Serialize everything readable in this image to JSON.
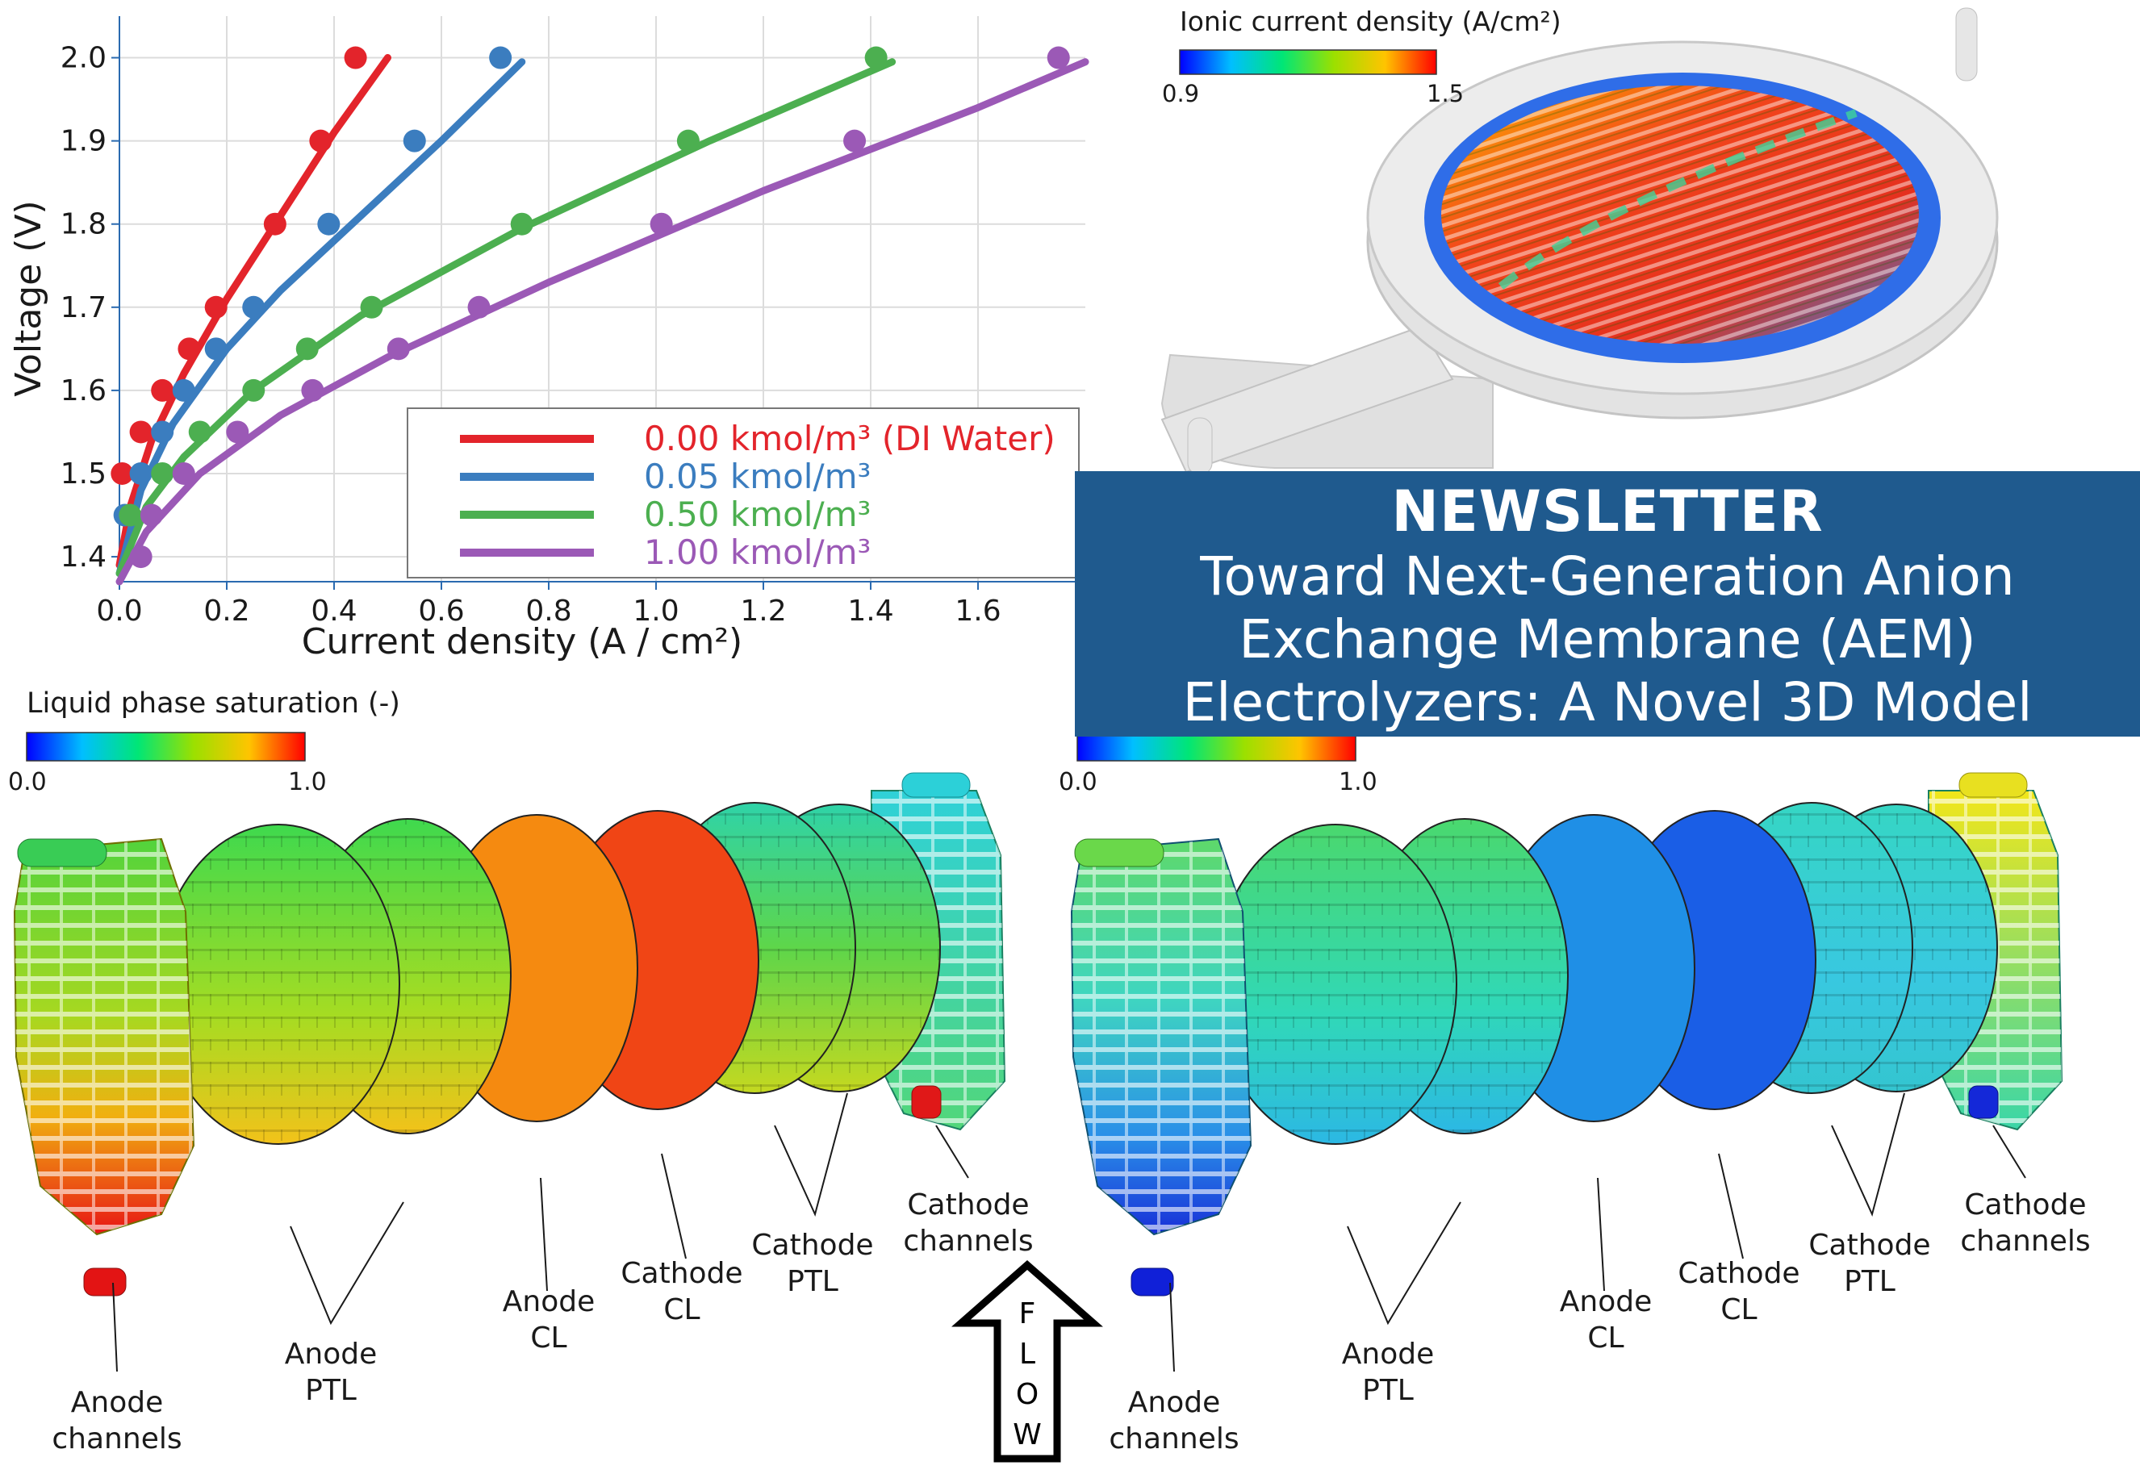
{
  "chart_data": {
    "type": "line",
    "xlabel": "Current density (A / cm²)",
    "ylabel": "Voltage (V)",
    "xlim": [
      0,
      1.8
    ],
    "ylim": [
      1.37,
      2.05
    ],
    "xticks": [
      "0.0",
      "0.2",
      "0.4",
      "0.6",
      "0.8",
      "1.0",
      "1.2",
      "1.4",
      "1.6"
    ],
    "yticks": [
      "1.4",
      "1.5",
      "1.6",
      "1.7",
      "1.8",
      "1.9",
      "2.0"
    ],
    "grid": true,
    "legend_position": "bottom-right",
    "series": [
      {
        "name": "0.00 kmol/m³ (DI Water)",
        "color": "#e3242b",
        "points": [
          [
            0.005,
            1.5
          ],
          [
            0.04,
            1.55
          ],
          [
            0.08,
            1.6
          ],
          [
            0.13,
            1.65
          ],
          [
            0.18,
            1.7
          ],
          [
            0.29,
            1.8
          ],
          [
            0.375,
            1.9
          ],
          [
            0.44,
            2.0
          ]
        ],
        "fit": [
          [
            0.0,
            1.39
          ],
          [
            0.02,
            1.46
          ],
          [
            0.06,
            1.54
          ],
          [
            0.12,
            1.62
          ],
          [
            0.2,
            1.71
          ],
          [
            0.3,
            1.81
          ],
          [
            0.4,
            1.91
          ],
          [
            0.5,
            2.0
          ]
        ]
      },
      {
        "name": "0.05 kmol/m³",
        "color": "#3b7dbf",
        "points": [
          [
            0.01,
            1.45
          ],
          [
            0.04,
            1.5
          ],
          [
            0.08,
            1.55
          ],
          [
            0.12,
            1.6
          ],
          [
            0.18,
            1.65
          ],
          [
            0.25,
            1.7
          ],
          [
            0.39,
            1.8
          ],
          [
            0.55,
            1.9
          ],
          [
            0.71,
            2.0
          ]
        ],
        "fit": [
          [
            0.0,
            1.38
          ],
          [
            0.04,
            1.48
          ],
          [
            0.1,
            1.56
          ],
          [
            0.2,
            1.65
          ],
          [
            0.3,
            1.72
          ],
          [
            0.45,
            1.81
          ],
          [
            0.6,
            1.9
          ],
          [
            0.75,
            1.995
          ]
        ]
      },
      {
        "name": "0.50 kmol/m³",
        "color": "#4caf50",
        "points": [
          [
            0.02,
            1.45
          ],
          [
            0.08,
            1.5
          ],
          [
            0.15,
            1.55
          ],
          [
            0.25,
            1.6
          ],
          [
            0.35,
            1.65
          ],
          [
            0.47,
            1.7
          ],
          [
            0.75,
            1.8
          ],
          [
            1.06,
            1.9
          ],
          [
            1.41,
            2.0
          ]
        ],
        "fit": [
          [
            0.0,
            1.38
          ],
          [
            0.05,
            1.46
          ],
          [
            0.12,
            1.52
          ],
          [
            0.25,
            1.6
          ],
          [
            0.45,
            1.69
          ],
          [
            0.75,
            1.795
          ],
          [
            1.1,
            1.9
          ],
          [
            1.44,
            1.995
          ]
        ]
      },
      {
        "name": "1.00 kmol/m³",
        "color": "#9b59b6",
        "points": [
          [
            0.04,
            1.4
          ],
          [
            0.06,
            1.45
          ],
          [
            0.12,
            1.5
          ],
          [
            0.22,
            1.55
          ],
          [
            0.36,
            1.6
          ],
          [
            0.52,
            1.65
          ],
          [
            0.67,
            1.7
          ],
          [
            1.01,
            1.8
          ],
          [
            1.37,
            1.9
          ],
          [
            1.75,
            2.0
          ]
        ],
        "fit": [
          [
            0.0,
            1.37
          ],
          [
            0.05,
            1.43
          ],
          [
            0.15,
            1.5
          ],
          [
            0.3,
            1.57
          ],
          [
            0.5,
            1.64
          ],
          [
            0.8,
            1.73
          ],
          [
            1.2,
            1.84
          ],
          [
            1.6,
            1.94
          ],
          [
            1.8,
            1.995
          ]
        ]
      }
    ]
  },
  "ionic_colorbar": {
    "title": "Ionic current density (A/cm²)",
    "min": "0.9",
    "max": "1.5"
  },
  "saturation_colorbar": {
    "title": "Liquid phase saturation (-)",
    "min": "0.0",
    "max": "1.0"
  },
  "saturation_colorbar_right": {
    "min": "0.0",
    "max": "1.0"
  },
  "banner": {
    "heading": "NEWSLETTER",
    "lines": [
      "Toward Next-Generation Anion",
      "Exchange Membrane (AEM)",
      "Electrolyzers: A Novel 3D Model"
    ]
  },
  "flow_arrow": {
    "letters": [
      "F",
      "L",
      "O",
      "W"
    ]
  },
  "labels_left": {
    "anode_channels": [
      "Anode",
      "channels"
    ],
    "anode_ptl": [
      "Anode",
      "PTL"
    ],
    "anode_cl": [
      "Anode",
      "CL"
    ],
    "cathode_cl": [
      "Cathode",
      "CL"
    ],
    "cathode_ptl": [
      "Cathode",
      "PTL"
    ],
    "cathode_channels": [
      "Cathode",
      "channels"
    ]
  },
  "labels_right": {
    "anode_channels": [
      "Anode",
      "channels"
    ],
    "anode_ptl": [
      "Anode",
      "PTL"
    ],
    "anode_cl": [
      "Anode",
      "CL"
    ],
    "cathode_cl": [
      "Cathode",
      "CL"
    ],
    "cathode_ptl": [
      "Cathode",
      "PTL"
    ],
    "cathode_channels": [
      "Cathode",
      "channels"
    ]
  },
  "colors": {
    "banner_bg": "#1f5a8e",
    "left_layers": [
      "#6fd84a",
      "#7fdc3a",
      "#f58a10",
      "#f04515",
      "#52d86e",
      "#55d64f"
    ],
    "right_layers": [
      "#2ce07a",
      "#33e08a",
      "#1f8fe6",
      "#1a5ee6",
      "#3ad6c8",
      "#37dbb2"
    ]
  }
}
